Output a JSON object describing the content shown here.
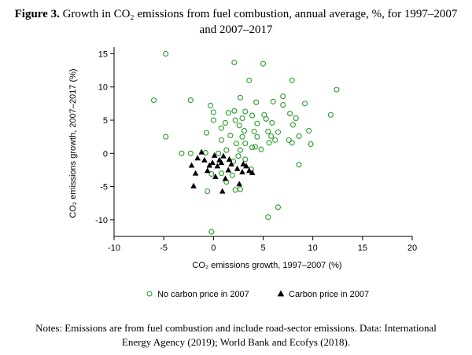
{
  "figure": {
    "label": "Figure 3.",
    "title_line1": "Growth in CO₂ emissions from fuel combustion, annual average, %, for 1997–2007",
    "title_line2": "and 2007–2017"
  },
  "notes": {
    "line1": "Notes: Emissions are from fuel combustion and include road-sector emissions. Data: International",
    "line2": "Energy Agency (2019); World Bank and Ecofys (2018)."
  },
  "chart_data": {
    "type": "scatter",
    "xlabel": "CO₂ emissions growth, 1997–2007 (%)",
    "ylabel": "CO₂ emissions growth, 2007–2017 (%)",
    "xlim": [
      -10,
      20
    ],
    "ylim": [
      -12.5,
      16
    ],
    "xticks": [
      -10,
      -5,
      0,
      5,
      10,
      15,
      20
    ],
    "yticks": [
      -10,
      -5,
      0,
      5,
      10,
      15
    ],
    "grid": false,
    "legend_position": "bottom",
    "series": [
      {
        "name": "No carbon price in 2007",
        "marker": "hollow-circle",
        "color": "#2a9a2a",
        "points": [
          [
            -4.8,
            15
          ],
          [
            2.1,
            13.7
          ],
          [
            5,
            13.5
          ],
          [
            3.6,
            11
          ],
          [
            7.9,
            11
          ],
          [
            12.4,
            9.6
          ],
          [
            -6,
            8
          ],
          [
            -2.3,
            8
          ],
          [
            1.5,
            6.1
          ],
          [
            2.7,
            8.4
          ],
          [
            4.3,
            7.7
          ],
          [
            6,
            7.8
          ],
          [
            7,
            8.6
          ],
          [
            9.2,
            7.5
          ],
          [
            11.8,
            5.8
          ],
          [
            -0.3,
            7.2
          ],
          [
            0,
            6.2
          ],
          [
            2.1,
            6.4
          ],
          [
            3.2,
            6.3
          ],
          [
            3.9,
            5.7
          ],
          [
            5.1,
            5.8
          ],
          [
            5.3,
            5.2
          ],
          [
            7,
            7.3
          ],
          [
            7.7,
            6
          ],
          [
            8.3,
            5.3
          ],
          [
            0,
            5
          ],
          [
            1.2,
            4.6
          ],
          [
            2.2,
            5
          ],
          [
            2.9,
            5.3
          ],
          [
            4.4,
            4.5
          ],
          [
            5.9,
            4.6
          ],
          [
            6.5,
            3.2
          ],
          [
            8,
            4.3
          ],
          [
            9.6,
            3.4
          ],
          [
            0.8,
            3.8
          ],
          [
            2.6,
            4.2
          ],
          [
            3.1,
            3.4
          ],
          [
            4.1,
            3.3
          ],
          [
            5.5,
            3.3
          ],
          [
            -0.7,
            3.1
          ],
          [
            1.7,
            2.7
          ],
          [
            2.9,
            2.5
          ],
          [
            4.4,
            2.5
          ],
          [
            5.8,
            2.6
          ],
          [
            7.6,
            2
          ],
          [
            8.6,
            2.6
          ],
          [
            -4.8,
            2.5
          ],
          [
            0.8,
            2
          ],
          [
            2.3,
            1.5
          ],
          [
            3.2,
            1.5
          ],
          [
            4.2,
            1
          ],
          [
            5.6,
            1.6
          ],
          [
            6.2,
            2
          ],
          [
            7.9,
            1.6
          ],
          [
            9.8,
            1.4
          ],
          [
            -3.2,
            0
          ],
          [
            -2.3,
            0
          ],
          [
            -0.8,
            0.1
          ],
          [
            0.5,
            0
          ],
          [
            1.3,
            0.5
          ],
          [
            2.7,
            0.5
          ],
          [
            3.9,
            0.9
          ],
          [
            4.8,
            0.6
          ],
          [
            2.5,
            -0.4
          ],
          [
            3.2,
            -0.9
          ],
          [
            2,
            -1.2
          ],
          [
            8.6,
            -1.7
          ],
          [
            -0.2,
            -3.1
          ],
          [
            0.8,
            -3
          ],
          [
            1.9,
            -3.3
          ],
          [
            3.8,
            -2.4
          ],
          [
            -0.6,
            -5.7
          ],
          [
            1.3,
            -4.3
          ],
          [
            2.7,
            -5.4
          ],
          [
            2.2,
            -5.5
          ],
          [
            6.5,
            -8.1
          ],
          [
            5.5,
            -9.6
          ],
          [
            -0.2,
            -11.8
          ]
        ]
      },
      {
        "name": "Carbon price in 2007",
        "marker": "filled-triangle",
        "color": "#000000",
        "points": [
          [
            -1.2,
            0.2
          ],
          [
            0.1,
            -0.3
          ],
          [
            1,
            -0.4
          ],
          [
            -1.6,
            -0.7
          ],
          [
            -0.9,
            -1
          ],
          [
            0.6,
            -1
          ],
          [
            1.6,
            -0.9
          ],
          [
            -0.1,
            -1.4
          ],
          [
            0.8,
            -1.4
          ],
          [
            1.8,
            -1.6
          ],
          [
            3,
            -1.6
          ],
          [
            -2.2,
            -1.8
          ],
          [
            -0.4,
            -1.8
          ],
          [
            0.4,
            -1.9
          ],
          [
            3.3,
            -1.9
          ],
          [
            -0.6,
            -2.6
          ],
          [
            1.5,
            -2.5
          ],
          [
            2.4,
            -2.3
          ],
          [
            3.6,
            -2.6
          ],
          [
            -1.8,
            -3
          ],
          [
            2.9,
            -2.8
          ],
          [
            3.9,
            -2.9
          ],
          [
            0.2,
            -3.5
          ],
          [
            1.2,
            -3.8
          ],
          [
            -2,
            -4.9
          ],
          [
            2.6,
            -4.6
          ],
          [
            0.9,
            -5.7
          ]
        ]
      }
    ]
  }
}
